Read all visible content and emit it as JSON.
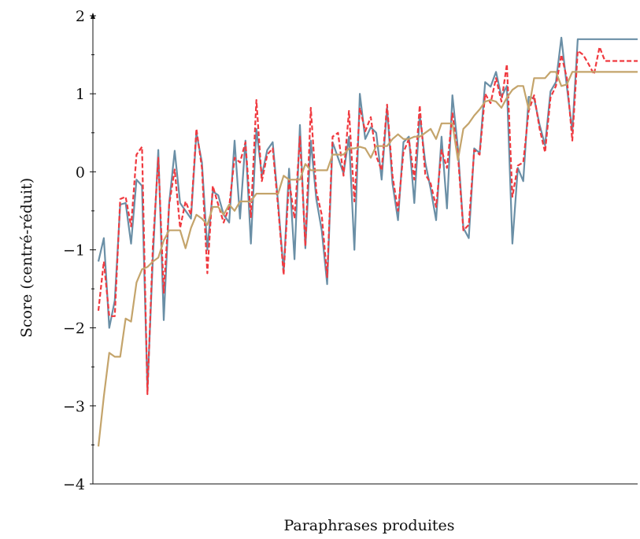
{
  "chart_data": {
    "type": "line",
    "title": "",
    "xlabel": "Paraphrases produites",
    "ylabel": "Score (centré-réduit)",
    "ylim": [
      -4,
      2
    ],
    "yticks": [
      -4,
      -3,
      -2,
      -1,
      0,
      1,
      2
    ],
    "ytick_labels": [
      "−4",
      "−3",
      "−2",
      "−1",
      "0",
      "1",
      "2"
    ],
    "x_ticks_shown": false,
    "grid": false,
    "legend": "none",
    "x": [
      1,
      2,
      3,
      4,
      5,
      6,
      7,
      8,
      9,
      10,
      11,
      12,
      13,
      14,
      15,
      16,
      17,
      18,
      19,
      20,
      21,
      22,
      23,
      24,
      25,
      26,
      27,
      28,
      29,
      30,
      31,
      32,
      33,
      34,
      35,
      36,
      37,
      38,
      39,
      40,
      41,
      42,
      43,
      44,
      45,
      46,
      47,
      48,
      49,
      50,
      51,
      52,
      53,
      54,
      55,
      56,
      57,
      58,
      59,
      60,
      61,
      62,
      63,
      64,
      65,
      66,
      67,
      68,
      69,
      70,
      71,
      72,
      73,
      74,
      75,
      76,
      77,
      78,
      79,
      80,
      81,
      82,
      83,
      84,
      85,
      86,
      87,
      88,
      89,
      90,
      91,
      92,
      93,
      94,
      95,
      96,
      97,
      98,
      99,
      100
    ],
    "series": [
      {
        "color": "#6a8fa6",
        "style": "solid",
        "values": [
          -1.15,
          -0.85,
          -2.0,
          -1.65,
          -0.42,
          -0.4,
          -0.92,
          -0.1,
          -0.18,
          -2.8,
          -1.1,
          0.28,
          -1.9,
          -0.4,
          0.27,
          -0.4,
          -0.5,
          -0.6,
          0.5,
          0.12,
          -1.0,
          -0.25,
          -0.3,
          -0.55,
          -0.65,
          0.4,
          -0.6,
          0.4,
          -0.92,
          0.55,
          -0.05,
          0.28,
          0.38,
          -0.4,
          -1.28,
          0.04,
          -1.12,
          0.6,
          -0.98,
          0.4,
          -0.35,
          -0.75,
          -1.44,
          0.38,
          0.18,
          -0.02,
          0.45,
          -1.0,
          1.0,
          0.42,
          0.57,
          0.5,
          -0.1,
          0.82,
          -0.15,
          -0.62,
          0.38,
          0.45,
          -0.4,
          0.74,
          0.12,
          -0.22,
          -0.62,
          0.45,
          -0.47,
          0.98,
          0.3,
          -0.72,
          -0.85,
          0.3,
          0.24,
          1.15,
          1.09,
          1.28,
          0.96,
          1.1,
          -0.92,
          0.05,
          -0.12,
          0.96,
          0.94,
          0.6,
          0.34,
          1.03,
          1.15,
          1.72,
          1.09,
          0.52,
          1.7,
          1.7,
          1.7,
          1.7,
          1.7,
          1.7,
          1.7,
          1.7,
          1.7,
          1.7,
          1.7,
          1.7
        ]
      },
      {
        "color": "#f0393f",
        "style": "dashed",
        "values": [
          -1.78,
          -1.15,
          -1.85,
          -1.85,
          -0.35,
          -0.32,
          -0.7,
          0.22,
          0.32,
          -2.85,
          -0.95,
          0.18,
          -1.55,
          -0.42,
          0.03,
          -0.72,
          -0.38,
          -0.55,
          0.55,
          0.05,
          -1.3,
          -0.18,
          -0.42,
          -0.65,
          -0.45,
          0.18,
          0.12,
          0.38,
          -0.58,
          0.92,
          -0.12,
          0.22,
          0.3,
          -0.45,
          -1.32,
          -0.1,
          -0.6,
          0.45,
          -0.95,
          0.82,
          -0.25,
          -0.55,
          -1.35,
          0.45,
          0.5,
          -0.05,
          0.78,
          -0.38,
          0.82,
          0.52,
          0.7,
          0.2,
          0.02,
          0.86,
          -0.05,
          -0.5,
          0.25,
          0.42,
          -0.1,
          0.85,
          -0.03,
          -0.15,
          -0.45,
          0.28,
          0.05,
          0.75,
          0.22,
          -0.75,
          -0.68,
          0.28,
          0.22,
          1.0,
          0.88,
          1.2,
          0.9,
          1.38,
          -0.32,
          0.08,
          0.12,
          0.78,
          0.98,
          0.55,
          0.25,
          0.95,
          1.1,
          1.5,
          1.2,
          0.4,
          1.55,
          1.5,
          1.38,
          1.25,
          1.6,
          1.42,
          1.42,
          1.42,
          1.42,
          1.42,
          1.42,
          1.42
        ]
      },
      {
        "color": "#c4a46b",
        "style": "solid",
        "values": [
          -3.52,
          -2.88,
          -2.32,
          -2.37,
          -2.37,
          -1.88,
          -1.92,
          -1.42,
          -1.25,
          -1.22,
          -1.15,
          -1.1,
          -0.88,
          -0.75,
          -0.75,
          -0.75,
          -0.98,
          -0.72,
          -0.55,
          -0.6,
          -0.68,
          -0.45,
          -0.45,
          -0.55,
          -0.42,
          -0.5,
          -0.38,
          -0.38,
          -0.38,
          -0.28,
          -0.28,
          -0.28,
          -0.28,
          -0.28,
          -0.05,
          -0.1,
          -0.1,
          -0.1,
          0.1,
          0.02,
          0.02,
          0.02,
          0.02,
          0.22,
          0.22,
          0.22,
          0.3,
          0.3,
          0.32,
          0.3,
          0.18,
          0.33,
          0.33,
          0.33,
          0.42,
          0.48,
          0.42,
          0.42,
          0.45,
          0.45,
          0.5,
          0.55,
          0.42,
          0.62,
          0.62,
          0.62,
          0.15,
          0.55,
          0.62,
          0.72,
          0.8,
          0.9,
          0.92,
          0.9,
          0.82,
          0.95,
          1.05,
          1.1,
          1.1,
          0.8,
          1.2,
          1.2,
          1.2,
          1.28,
          1.28,
          1.1,
          1.12,
          1.28,
          1.28,
          1.28,
          1.28,
          1.28,
          1.28,
          1.28,
          1.28,
          1.28,
          1.28,
          1.28,
          1.28,
          1.28
        ]
      }
    ]
  }
}
